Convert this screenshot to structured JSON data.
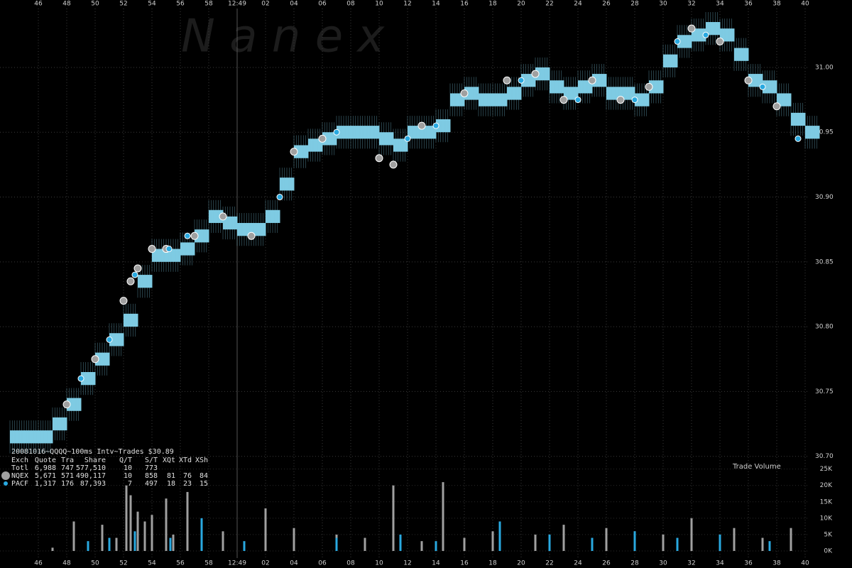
{
  "chart_data": {
    "type": "trades_quotes",
    "watermark": "N a n e x",
    "stats_title": "20081016~QQQQ~100ms Intv~Trades $30.89",
    "stats_columns": [
      "Exch",
      "Quote",
      "Tra",
      "Share",
      "Q/T",
      "S/T",
      "XQt",
      "XTd",
      "XSh"
    ],
    "stats_rows": [
      [
        "Totl",
        "6,988",
        "747",
        "577,510",
        "10",
        "773"
      ],
      [
        "NQEX",
        "5,671",
        "571",
        "490,117",
        "10",
        "858",
        "81",
        "76",
        "84"
      ],
      [
        "PACF",
        "1,317",
        "176",
        "87,393",
        "7",
        "497",
        "18",
        "23",
        "15"
      ]
    ],
    "volume_label": "Trade Volume",
    "xlim": [
      43.3,
      100.3
    ],
    "xticks": [
      46,
      48,
      50,
      52,
      54,
      56,
      58,
      {
        "value": 60,
        "label": "12:49"
      },
      {
        "value": 62,
        "label": "02"
      },
      {
        "value": 64,
        "label": "04"
      },
      {
        "value": 66,
        "label": "06"
      },
      {
        "value": 68,
        "label": "08"
      },
      {
        "value": 70,
        "label": "10"
      },
      {
        "value": 72,
        "label": "12"
      },
      {
        "value": 74,
        "label": "14"
      },
      {
        "value": 76,
        "label": "16"
      },
      {
        "value": 78,
        "label": "18"
      },
      {
        "value": 80,
        "label": "20"
      },
      {
        "value": 82,
        "label": "22"
      },
      {
        "value": 84,
        "label": "24"
      },
      {
        "value": 86,
        "label": "26"
      },
      {
        "value": 88,
        "label": "28"
      },
      {
        "value": 90,
        "label": "30"
      },
      {
        "value": 92,
        "label": "32"
      },
      {
        "value": 94,
        "label": "34"
      },
      {
        "value": 96,
        "label": "36"
      },
      {
        "value": 98,
        "label": "38"
      },
      {
        "value": 100,
        "label": "40"
      }
    ],
    "ylim": [
      30.696,
      31.052
    ],
    "yticks": [
      {
        "value": 30.7,
        "label": "30.70"
      },
      30.75,
      {
        "value": 30.8,
        "label": "30.80"
      },
      30.85,
      {
        "value": 30.9,
        "label": "30.90"
      },
      30.95,
      {
        "value": 31.0,
        "label": "31.00"
      }
    ],
    "grid": true,
    "quote_band": {
      "color": "#7ecbe3",
      "x": [
        44,
        45,
        46,
        47,
        48,
        49,
        50,
        51,
        52,
        53,
        54,
        55,
        56,
        57,
        58,
        59,
        60,
        61,
        62,
        63,
        64,
        65,
        66,
        67,
        68,
        69,
        70,
        71,
        72,
        73,
        74,
        75,
        76,
        77,
        78,
        79,
        80,
        81,
        82,
        83,
        84,
        85,
        86,
        87,
        88,
        89,
        90,
        91,
        92,
        93,
        94,
        95,
        96,
        97,
        98,
        99,
        100
      ],
      "low": [
        30.71,
        30.71,
        30.71,
        30.72,
        30.735,
        30.755,
        30.77,
        30.785,
        30.8,
        30.83,
        30.85,
        30.85,
        30.855,
        30.865,
        30.88,
        30.875,
        30.87,
        30.87,
        30.88,
        30.905,
        30.93,
        30.935,
        30.94,
        30.945,
        30.945,
        30.945,
        30.94,
        30.935,
        30.945,
        30.945,
        30.95,
        30.97,
        30.975,
        30.97,
        30.97,
        30.975,
        30.985,
        30.99,
        30.98,
        30.975,
        30.98,
        30.985,
        30.975,
        30.975,
        30.97,
        30.98,
        31.0,
        31.015,
        31.02,
        31.025,
        31.02,
        31.005,
        30.985,
        30.98,
        30.97,
        30.955,
        30.945
      ],
      "high": [
        30.72,
        30.72,
        30.72,
        30.73,
        30.745,
        30.765,
        30.78,
        30.795,
        30.81,
        30.84,
        30.86,
        30.86,
        30.865,
        30.875,
        30.89,
        30.885,
        30.88,
        30.88,
        30.89,
        30.915,
        30.94,
        30.945,
        30.95,
        30.955,
        30.955,
        30.955,
        30.95,
        30.945,
        30.955,
        30.955,
        30.96,
        30.98,
        30.985,
        30.98,
        30.98,
        30.985,
        30.995,
        31.0,
        30.99,
        30.985,
        30.99,
        30.995,
        30.985,
        30.985,
        30.98,
        30.99,
        31.01,
        31.025,
        31.03,
        31.035,
        31.03,
        31.015,
        30.995,
        30.99,
        30.98,
        30.965,
        30.955
      ]
    },
    "series": [
      {
        "name": "NQEX",
        "color": "#a0a0a0",
        "x": [
          48,
          50,
          52,
          52.5,
          53,
          54,
          55,
          57,
          59,
          61,
          64,
          66,
          70,
          71,
          73,
          76,
          79,
          81,
          83,
          85,
          87,
          89,
          92,
          94,
          96,
          98
        ],
        "values": [
          30.74,
          30.775,
          30.82,
          30.835,
          30.845,
          30.86,
          30.86,
          30.87,
          30.885,
          30.87,
          30.935,
          30.945,
          30.93,
          30.925,
          30.955,
          30.98,
          30.99,
          30.995,
          30.975,
          30.99,
          30.975,
          30.985,
          31.03,
          31.02,
          30.99,
          30.97
        ]
      },
      {
        "name": "PACF",
        "color": "#29a9e0",
        "x": [
          49,
          51,
          52.8,
          55.2,
          56.5,
          63,
          67,
          72,
          74,
          80,
          84,
          88,
          91,
          93,
          97,
          99.5
        ],
        "values": [
          30.76,
          30.79,
          30.84,
          30.86,
          30.87,
          30.9,
          30.95,
          30.945,
          30.955,
          30.99,
          30.975,
          30.975,
          31.02,
          31.025,
          30.985,
          30.945
        ]
      }
    ],
    "volume_ylim": [
      0,
      26000
    ],
    "volume_yticks": [
      {
        "value": 0,
        "label": "0K"
      },
      {
        "value": 5000,
        "label": "5K"
      },
      {
        "value": 10000,
        "label": "10K"
      },
      {
        "value": 15000,
        "label": "15K"
      },
      {
        "value": 20000,
        "label": "20K"
      },
      {
        "value": 25000,
        "label": "25K"
      }
    ],
    "volume_series": [
      {
        "x": [
          47,
          48.5,
          50.5,
          51.5,
          52.2,
          52.5,
          53,
          53.5,
          54,
          55,
          55.5,
          56.5,
          59,
          62,
          64,
          67,
          69,
          71,
          73,
          74.5,
          76,
          78,
          81,
          83,
          86,
          88,
          90,
          92,
          95,
          97,
          99
        ],
        "values": [
          1000,
          9000,
          8000,
          4000,
          20000,
          17000,
          12000,
          9000,
          11000,
          16000,
          5000,
          18000,
          6000,
          13000,
          7000,
          5000,
          4000,
          20000,
          3000,
          21000,
          4000,
          6000,
          5000,
          8000,
          7000,
          6000,
          5000,
          10000,
          7000,
          4000,
          7000
        ]
      },
      {
        "x": [
          49.5,
          51,
          52.8,
          55.3,
          57.5,
          60.5,
          67,
          71.5,
          74,
          78.5,
          82,
          85,
          88,
          91,
          94,
          97.5
        ],
        "values": [
          3000,
          4000,
          6000,
          4000,
          10000,
          3000,
          4000,
          5000,
          3000,
          9000,
          5000,
          4000,
          6000,
          4000,
          5000,
          3000
        ]
      }
    ]
  }
}
